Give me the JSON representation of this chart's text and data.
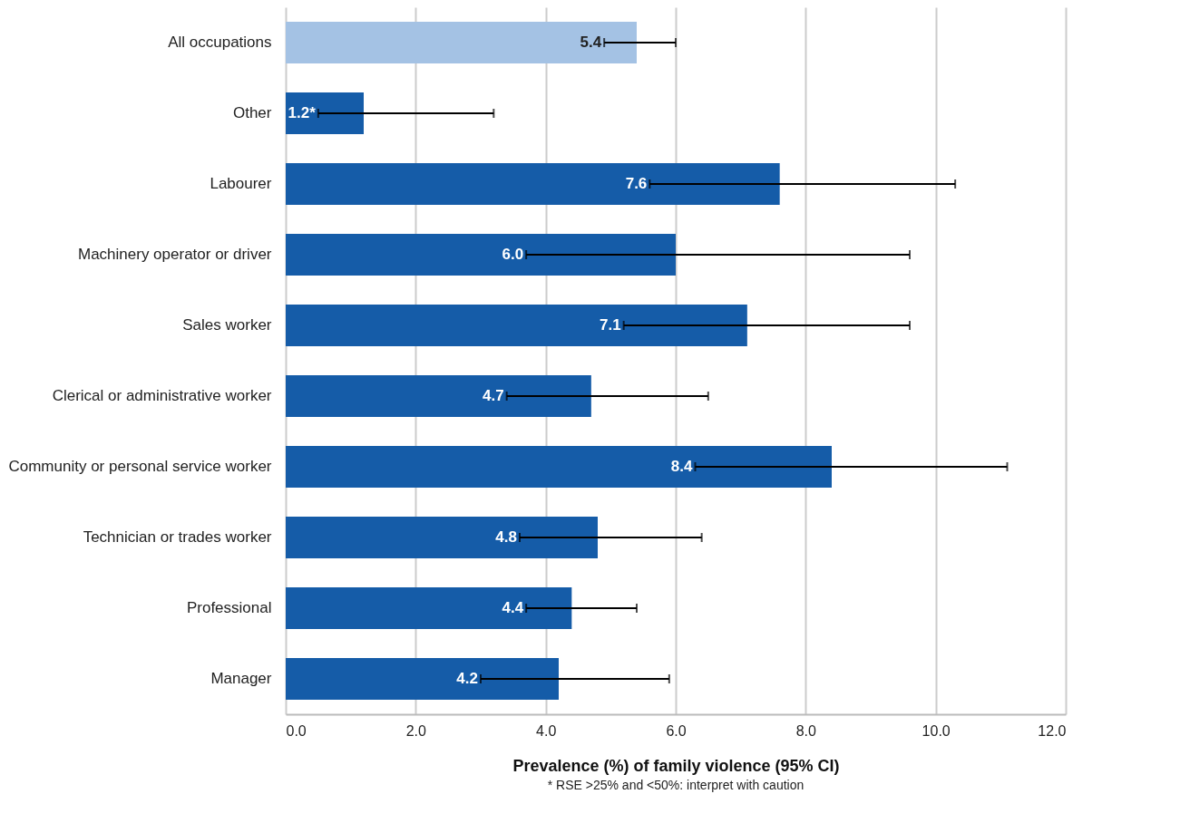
{
  "chart_data": {
    "type": "bar",
    "orientation": "horizontal",
    "categories": [
      "All occupations",
      "Other",
      "Labourer",
      "Machinery operator or driver",
      "Sales worker",
      "Clerical or administrative worker",
      "Community or personal service worker",
      "Technician or trades worker",
      "Professional",
      "Manager"
    ],
    "values": [
      5.4,
      1.2,
      7.6,
      6.0,
      7.1,
      4.7,
      8.4,
      4.8,
      4.4,
      4.2
    ],
    "colors": [
      "#a4c2e4",
      "#155ca8",
      "#155ca8",
      "#155ca8",
      "#155ca8",
      "#155ca8",
      "#155ca8",
      "#155ca8",
      "#155ca8",
      "#155ca8"
    ],
    "errors": [
      [
        4.9,
        6.0
      ],
      [
        0.5,
        3.2
      ],
      [
        5.6,
        10.3
      ],
      [
        3.7,
        9.6
      ],
      [
        5.2,
        9.6
      ],
      [
        3.4,
        6.5
      ],
      [
        6.3,
        11.1
      ],
      [
        3.6,
        6.4
      ],
      [
        3.7,
        5.4
      ],
      [
        3.0,
        5.9
      ]
    ],
    "value_labels": [
      "5.4",
      "1.2*",
      "7.6",
      "6.0",
      "7.1",
      "4.7",
      "8.4",
      "4.8",
      "4.4",
      "4.2"
    ],
    "xlabel": "Prevalence (%) of family violence (95% CI)",
    "xlim": [
      0,
      12
    ],
    "xticks": [
      {
        "value": 0,
        "label": "0.0"
      },
      {
        "value": 2,
        "label": "2.0"
      },
      {
        "value": 4,
        "label": "4.0"
      },
      {
        "value": 6,
        "label": "6.0"
      },
      {
        "value": 8,
        "label": "8.0"
      },
      {
        "value": 10,
        "label": "10.0"
      },
      {
        "value": 12,
        "label": "12.0"
      }
    ],
    "grid": "x",
    "annotations": [
      "* RSE >25% and <50%: interpret with caution"
    ]
  }
}
